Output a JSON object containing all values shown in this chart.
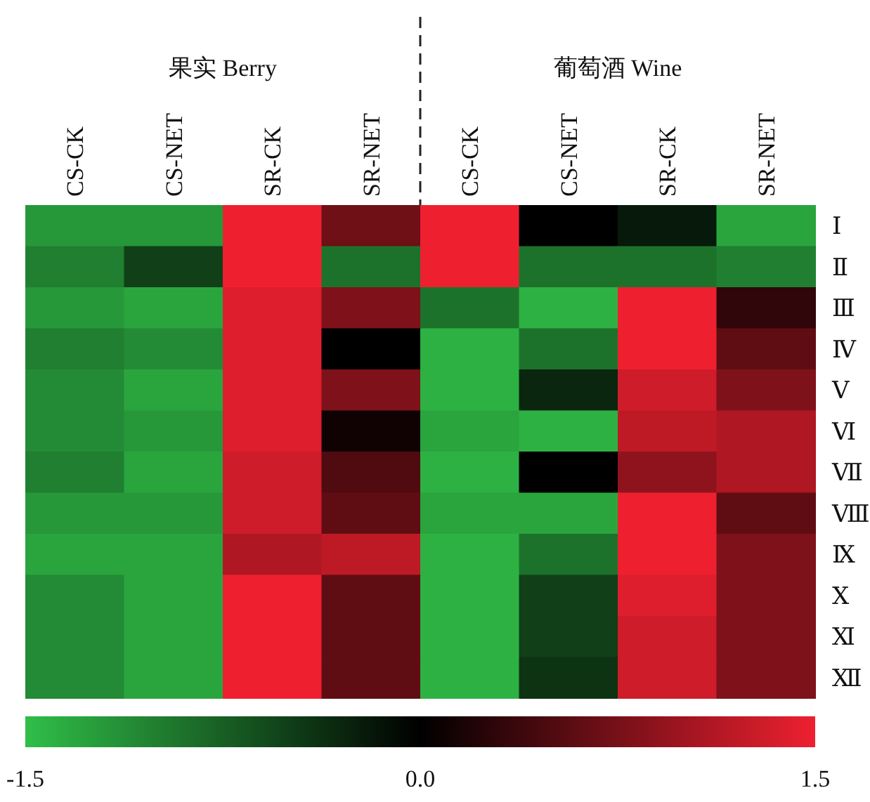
{
  "chart_data": {
    "type": "heatmap",
    "categories": [
      "CS-CK",
      "CS-NET",
      "SR-CK",
      "SR-NET",
      "CS-CK",
      "CS-NET",
      "SR-CK",
      "SR-NET"
    ],
    "y_categories": [
      "Ⅰ",
      "Ⅱ",
      "Ⅲ",
      "Ⅳ",
      "Ⅴ",
      "Ⅵ",
      "Ⅶ",
      "Ⅷ",
      "Ⅸ",
      "Ⅹ",
      "Ⅺ",
      "Ⅻ"
    ],
    "cells": [
      [
        -1.2,
        -1.2,
        1.5,
        0.7,
        1.5,
        0.0,
        -0.2,
        -1.3
      ],
      [
        -1.0,
        -0.5,
        1.5,
        -0.9,
        1.5,
        -0.9,
        -0.9,
        -1.0
      ],
      [
        -1.2,
        -1.3,
        1.4,
        0.8,
        -0.9,
        -1.4,
        1.5,
        0.3
      ],
      [
        -1.0,
        -1.1,
        1.4,
        0.0,
        -1.4,
        -0.9,
        1.5,
        0.6
      ],
      [
        -1.1,
        -1.3,
        1.4,
        0.8,
        -1.4,
        -0.3,
        1.3,
        0.8
      ],
      [
        -1.1,
        -1.2,
        1.4,
        0.1,
        -1.3,
        -1.4,
        1.2,
        1.1
      ],
      [
        -1.0,
        -1.3,
        1.3,
        0.5,
        -1.4,
        0.0,
        0.9,
        1.1
      ],
      [
        -1.2,
        -1.2,
        1.3,
        0.6,
        -1.3,
        -1.3,
        1.5,
        0.6
      ],
      [
        -1.3,
        -1.3,
        1.1,
        1.2,
        -1.4,
        -0.9,
        1.5,
        0.8
      ],
      [
        -1.1,
        -1.3,
        1.5,
        0.6,
        -1.4,
        -0.5,
        1.4,
        0.8
      ],
      [
        -1.1,
        -1.3,
        1.5,
        0.6,
        -1.4,
        -0.5,
        1.3,
        0.8
      ],
      [
        -1.1,
        -1.3,
        1.5,
        0.6,
        -1.4,
        -0.4,
        1.3,
        0.8
      ]
    ],
    "clim": [
      -1.5,
      1.5
    ],
    "cticks": [
      -1.5,
      {
        "value": 0,
        "label": "0.0"
      },
      1.5
    ],
    "annotations": [
      "果实 Berry",
      "葡萄酒 Wine"
    ]
  }
}
